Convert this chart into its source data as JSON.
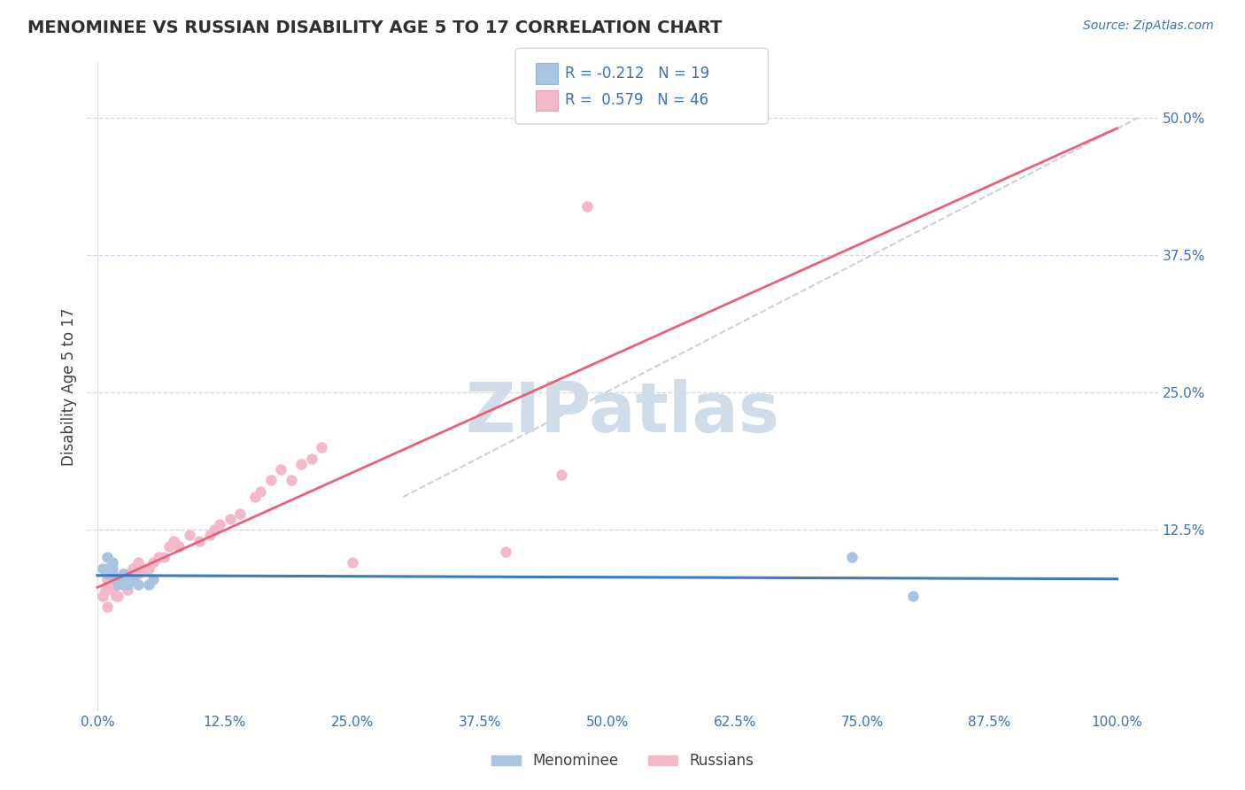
{
  "title": "MENOMINEE VS RUSSIAN DISABILITY AGE 5 TO 17 CORRELATION CHART",
  "source_text": "Source: ZipAtlas.com",
  "ylabel": "Disability Age 5 to 17",
  "xticklabels": [
    "0.0%",
    "12.5%",
    "25.0%",
    "37.5%",
    "50.0%",
    "62.5%",
    "75.0%",
    "87.5%",
    "100.0%"
  ],
  "xticks": [
    0.0,
    0.125,
    0.25,
    0.375,
    0.5,
    0.625,
    0.75,
    0.875,
    1.0
  ],
  "yticklabels": [
    "12.5%",
    "25.0%",
    "37.5%",
    "50.0%"
  ],
  "yticks": [
    0.125,
    0.25,
    0.375,
    0.5
  ],
  "xlim": [
    -0.01,
    1.04
  ],
  "ylim": [
    -0.04,
    0.55
  ],
  "menominee_color": "#a8c4e0",
  "russian_color": "#f4b8c8",
  "menominee_line_color": "#3a7abf",
  "russian_line_color": "#e8607a",
  "dash_line_color": "#c8c0d0",
  "grid_color": "#d0d8e8",
  "watermark_color": "#d0dce8",
  "background_color": "#ffffff",
  "tick_color": "#4070b0",
  "menominee_x": [
    0.005,
    0.01,
    0.01,
    0.01,
    0.015,
    0.015,
    0.015,
    0.02,
    0.02,
    0.025,
    0.025,
    0.03,
    0.03,
    0.035,
    0.04,
    0.05,
    0.055,
    0.74,
    0.8
  ],
  "menominee_y": [
    0.09,
    0.1,
    0.09,
    0.085,
    0.085,
    0.095,
    0.09,
    0.08,
    0.075,
    0.075,
    0.085,
    0.08,
    0.075,
    0.08,
    0.075,
    0.075,
    0.08,
    0.1,
    0.065
  ],
  "russian_x": [
    0.005,
    0.008,
    0.01,
    0.01,
    0.012,
    0.015,
    0.015,
    0.018,
    0.02,
    0.02,
    0.022,
    0.025,
    0.025,
    0.03,
    0.03,
    0.035,
    0.035,
    0.04,
    0.04,
    0.045,
    0.05,
    0.055,
    0.06,
    0.065,
    0.07,
    0.075,
    0.08,
    0.09,
    0.1,
    0.11,
    0.115,
    0.12,
    0.13,
    0.14,
    0.155,
    0.16,
    0.17,
    0.18,
    0.19,
    0.2,
    0.21,
    0.22,
    0.25,
    0.4,
    0.455,
    0.48
  ],
  "russian_y": [
    0.065,
    0.07,
    0.055,
    0.08,
    0.075,
    0.07,
    0.075,
    0.065,
    0.065,
    0.075,
    0.08,
    0.075,
    0.085,
    0.07,
    0.085,
    0.08,
    0.09,
    0.085,
    0.095,
    0.09,
    0.09,
    0.095,
    0.1,
    0.1,
    0.11,
    0.115,
    0.11,
    0.12,
    0.115,
    0.12,
    0.125,
    0.13,
    0.135,
    0.14,
    0.155,
    0.16,
    0.17,
    0.18,
    0.17,
    0.185,
    0.19,
    0.2,
    0.095,
    0.105,
    0.175,
    0.42
  ]
}
